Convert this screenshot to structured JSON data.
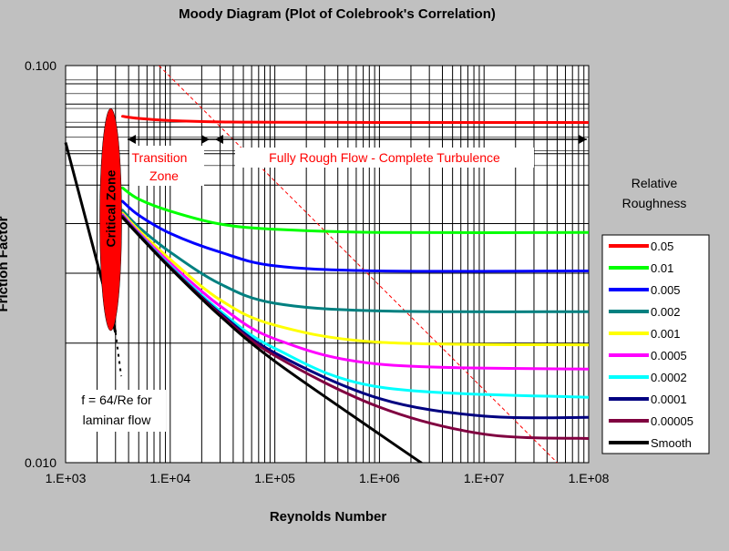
{
  "chart_data": {
    "type": "line",
    "title": "Moody Diagram (Plot of Colebrook's Correlation)",
    "xlabel": "Reynolds Number",
    "ylabel": "Friction Factor",
    "x_scale": "log",
    "y_scale": "log",
    "xlim": [
      1000,
      100000000
    ],
    "ylim": [
      0.01,
      0.1
    ],
    "x_tick_labels": [
      "1.E+03",
      "1.E+04",
      "1.E+05",
      "1.E+06",
      "1.E+07",
      "1.E+08"
    ],
    "y_tick_labels": [
      "0.100",
      "0.010"
    ],
    "grid": true,
    "legend": {
      "title": "Relative Roughness",
      "placement": "right",
      "entries": [
        "0.05",
        "0.01",
        "0.005",
        "0.002",
        "0.001",
        "0.0005",
        "0.0002",
        "0.0001",
        "0.00005",
        "Smooth"
      ]
    },
    "series": [
      {
        "name": "0.05",
        "color": "#ff0000",
        "x": [
          3500,
          5000,
          10000,
          30000,
          100000,
          1000000,
          100000000
        ],
        "y": [
          0.0745,
          0.0736,
          0.0727,
          0.0721,
          0.072,
          0.0719,
          0.0719
        ]
      },
      {
        "name": "0.01",
        "color": "#00ff00",
        "x": [
          3500,
          5000,
          10000,
          30000,
          100000,
          1000000,
          100000000
        ],
        "y": [
          0.0492,
          0.0461,
          0.043,
          0.0399,
          0.0387,
          0.038,
          0.038
        ]
      },
      {
        "name": "0.005",
        "color": "#0000ff",
        "x": [
          3500,
          5000,
          10000,
          30000,
          100000,
          1000000,
          100000000
        ],
        "y": [
          0.0455,
          0.042,
          0.0378,
          0.0339,
          0.0313,
          0.0304,
          0.0304
        ]
      },
      {
        "name": "0.002",
        "color": "#008080",
        "x": [
          3500,
          5000,
          10000,
          30000,
          100000,
          1000000,
          100000000
        ],
        "y": [
          0.0432,
          0.0392,
          0.0339,
          0.0282,
          0.0252,
          0.0241,
          0.024
        ]
      },
      {
        "name": "0.001",
        "color": "#ffff00",
        "x": [
          3500,
          5000,
          10000,
          30000,
          100000,
          1000000,
          100000000
        ],
        "y": [
          0.0425,
          0.0385,
          0.0325,
          0.0257,
          0.0222,
          0.0201,
          0.0198
        ]
      },
      {
        "name": "0.0005",
        "color": "#ff00ff",
        "x": [
          3500,
          5000,
          10000,
          30000,
          100000,
          1000000,
          100000000
        ],
        "y": [
          0.0421,
          0.038,
          0.0318,
          0.0248,
          0.0205,
          0.0177,
          0.0172
        ]
      },
      {
        "name": "0.0002",
        "color": "#00ffff",
        "x": [
          3500,
          5000,
          10000,
          30000,
          100000,
          1000000,
          100000000
        ],
        "y": [
          0.0418,
          0.0377,
          0.0313,
          0.0241,
          0.0194,
          0.0155,
          0.0146
        ]
      },
      {
        "name": "0.0001",
        "color": "#000080",
        "x": [
          3500,
          5000,
          10000,
          30000,
          100000,
          1000000,
          10000000,
          100000000
        ],
        "y": [
          0.0417,
          0.0376,
          0.0311,
          0.0238,
          0.0189,
          0.0145,
          0.0131,
          0.013
        ]
      },
      {
        "name": "0.00005",
        "color": "#800040",
        "x": [
          3500,
          5000,
          10000,
          30000,
          100000,
          1000000,
          10000000,
          100000000
        ],
        "y": [
          0.0416,
          0.0375,
          0.031,
          0.0236,
          0.0186,
          0.0138,
          0.0118,
          0.0115
        ]
      },
      {
        "name": "Smooth",
        "color": "#000000",
        "x": [
          3500,
          5000,
          10000,
          30000,
          100000,
          1000000,
          2500000
        ],
        "y": [
          0.0414,
          0.0374,
          0.0309,
          0.0234,
          0.018,
          0.0118,
          0.01
        ]
      }
    ],
    "laminar_line": {
      "name": "f = 64/Re for laminar flow",
      "color": "#000000",
      "x": [
        1000,
        3000
      ],
      "y": [
        0.064,
        0.0213
      ]
    },
    "critical_zone": {
      "label": "Critical Zone",
      "color": "#ff0000",
      "x_center": 2700,
      "y_range": [
        0.0215,
        0.078
      ]
    },
    "fully_rough_boundary": {
      "color": "#ff0000",
      "x": [
        7800,
        50000000
      ],
      "y": [
        0.1,
        0.01
      ]
    },
    "annotations": [
      {
        "text": "Transition",
        "color": "#ff0000"
      },
      {
        "text": "Zone",
        "color": "#ff0000"
      },
      {
        "text": "Fully Rough Flow - Complete Turbulence",
        "color": "#ff0000"
      },
      {
        "text": "f = 64/Re for",
        "color": "#000000"
      },
      {
        "text": "laminar flow",
        "color": "#000000"
      }
    ]
  }
}
